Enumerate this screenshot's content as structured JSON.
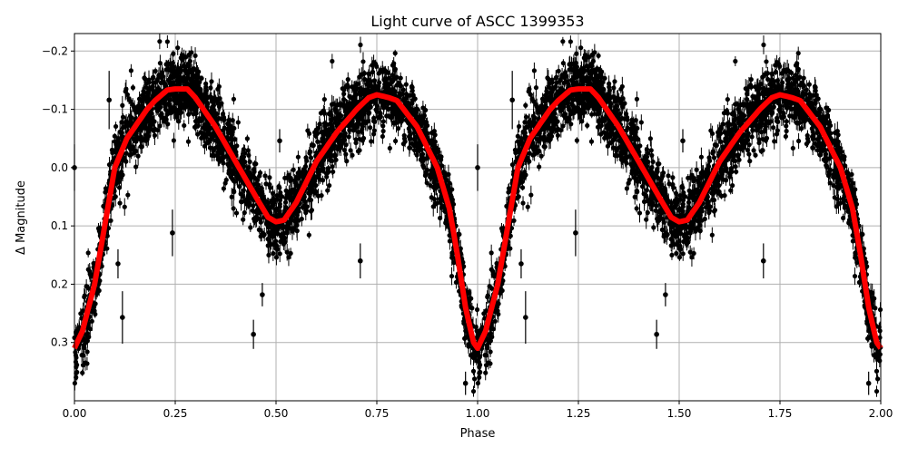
{
  "chart_data": {
    "type": "scatter",
    "title": "Light curve of ASCC 1399353",
    "xlabel": "Phase",
    "ylabel": "Δ Magnitude",
    "xlim": [
      0,
      2
    ],
    "ylim": [
      0.4,
      -0.23
    ],
    "y_inverted": true,
    "grid": true,
    "x_ticks": [
      0,
      0.25,
      0.5,
      0.75,
      1,
      1.25,
      1.5,
      1.75,
      2
    ],
    "x_tick_labels": [
      "0.00",
      "0.25",
      "0.50",
      "0.75",
      "1.00",
      "1.25",
      "1.50",
      "1.75",
      "2.00"
    ],
    "y_ticks": [
      -0.2,
      -0.1,
      0,
      0.1,
      0.2,
      0.3
    ],
    "y_tick_labels": [
      "−0.2",
      "−0.1",
      "0.0",
      "0.1",
      "0.2",
      "0.3"
    ],
    "colors": {
      "points": "#000000",
      "model": "#ff0000",
      "grid": "#b0b0b0"
    },
    "model_curve": {
      "phase": [
        0,
        0.02,
        0.05,
        0.08,
        0.1,
        0.13,
        0.15,
        0.18,
        0.2,
        0.23,
        0.25,
        0.28,
        0.3,
        0.35,
        0.4,
        0.45,
        0.48,
        0.5,
        0.52,
        0.55,
        0.6,
        0.65,
        0.7,
        0.73,
        0.75,
        0.78,
        0.8,
        0.85,
        0.9,
        0.93,
        0.95,
        0.97,
        0.99,
        1.0
      ],
      "magnitude": [
        0.31,
        0.28,
        0.2,
        0.08,
        0.0,
        -0.05,
        -0.07,
        -0.1,
        -0.115,
        -0.133,
        -0.135,
        -0.135,
        -0.12,
        -0.07,
        -0.01,
        0.05,
        0.085,
        0.093,
        0.09,
        0.06,
        -0.01,
        -0.06,
        -0.1,
        -0.12,
        -0.125,
        -0.12,
        -0.115,
        -0.07,
        0.0,
        0.07,
        0.15,
        0.24,
        0.3,
        0.31
      ]
    },
    "outliers": [
      {
        "phase": 0.0,
        "magnitude": 0.0,
        "error": 0.04
      },
      {
        "phase": 0.086,
        "magnitude": -0.116,
        "error": 0.05
      },
      {
        "phase": 0.108,
        "magnitude": 0.165,
        "error": 0.025
      },
      {
        "phase": 0.119,
        "magnitude": 0.257,
        "error": 0.045
      },
      {
        "phase": 0.243,
        "magnitude": 0.112,
        "error": 0.04
      },
      {
        "phase": 0.444,
        "magnitude": 0.286,
        "error": 0.025
      },
      {
        "phase": 0.466,
        "magnitude": 0.218,
        "error": 0.02
      },
      {
        "phase": 0.509,
        "magnitude": -0.046,
        "error": 0.02
      },
      {
        "phase": 0.709,
        "magnitude": 0.16,
        "error": 0.03
      },
      {
        "phase": 0.97,
        "magnitude": 0.37,
        "error": 0.02
      }
    ]
  }
}
